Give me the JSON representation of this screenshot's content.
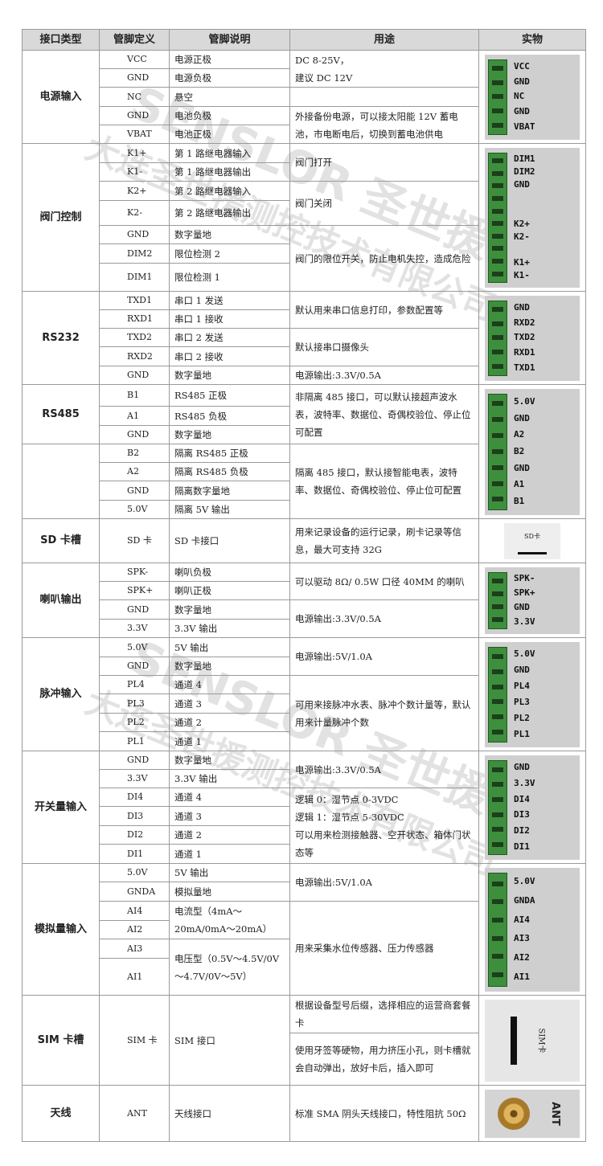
{
  "header": {
    "type": "接口类型",
    "pin": "管脚定义",
    "desc": "管脚说明",
    "use": "用途",
    "photo": "实物"
  },
  "groups": [
    {
      "type": "电源输入",
      "pins": [
        {
          "pin": "VCC",
          "desc": "电源正极"
        },
        {
          "pin": "GND",
          "desc": "电源负极"
        },
        {
          "pin": "NC",
          "desc": "悬空"
        },
        {
          "pin": "GND",
          "desc": "电池负极"
        },
        {
          "pin": "VBAT",
          "desc": "电池正极"
        }
      ],
      "uses": [
        "DC 8-25V，\n建议 DC 12V",
        "",
        "外接备份电源，可以接太阳能 12V 蓄电池，市电断电后，切换到蓄电池供电"
      ],
      "photo": {
        "kind": "connector",
        "labels": [
          "VCC",
          "GND",
          "NC",
          "GND",
          "VBAT"
        ]
      }
    },
    {
      "type": "阀门控制",
      "pins": [
        {
          "pin": "K1+",
          "desc": "第 1 路继电器输入"
        },
        {
          "pin": "K1-",
          "desc": "第 1 路继电器输出"
        },
        {
          "pin": "K2+",
          "desc": "第 2 路继电器输入"
        },
        {
          "pin": "K2-",
          "desc": "第 2 路继电器输出"
        },
        {
          "pin": "GND",
          "desc": "数字量地"
        },
        {
          "pin": "DIM2",
          "desc": "限位检测 2"
        },
        {
          "pin": "DIM1",
          "desc": "限位检测 1"
        }
      ],
      "uses": [
        "阀门打开",
        "阀门关闭",
        "阀门的限位开关，防止电机失控，造成危险"
      ],
      "photo": {
        "kind": "connector",
        "labels": [
          "DIM1",
          "DIM2",
          "GND",
          "",
          "",
          "K2+",
          "K2-",
          "",
          "K1+",
          "K1-"
        ]
      }
    },
    {
      "type": "RS232",
      "pins": [
        {
          "pin": "TXD1",
          "desc": "串口 1 发送"
        },
        {
          "pin": "RXD1",
          "desc": "串口 1 接收"
        },
        {
          "pin": "TXD2",
          "desc": "串口 2 发送"
        },
        {
          "pin": "RXD2",
          "desc": "串口 2 接收"
        },
        {
          "pin": "GND",
          "desc": "数字量地"
        }
      ],
      "uses": [
        "默认用来串口信息打印，参数配置等",
        "默认接串口摄像头",
        "电源输出:3.3V/0.5A"
      ],
      "photo": {
        "kind": "connector",
        "labels": [
          "GND",
          "RXD2",
          "TXD2",
          "RXD1",
          "TXD1"
        ]
      }
    },
    {
      "type": "RS485",
      "pins": [
        {
          "pin": "B1",
          "desc": "RS485 正极"
        },
        {
          "pin": "A1",
          "desc": "RS485 负极"
        },
        {
          "pin": "GND",
          "desc": "数字量地"
        }
      ],
      "uses": [
        "非隔离 485 接口，可以默认接超声波水表，波特率、数据位、奇偶校验位、停止位可配置"
      ],
      "photo": {
        "kind": "connector",
        "labels": [
          "5.0V",
          "GND",
          "A2",
          "B2",
          "GND",
          "A1",
          "B1"
        ]
      }
    },
    {
      "type": "",
      "pins": [
        {
          "pin": "B2",
          "desc": "隔离 RS485 正极"
        },
        {
          "pin": "A2",
          "desc": "隔离 RS485 负极"
        },
        {
          "pin": "GND",
          "desc": "隔离数字量地"
        },
        {
          "pin": "5.0V",
          "desc": "隔离 5V 输出"
        }
      ],
      "uses": [
        "隔离 485 接口，默认接智能电表，波特率、数据位、奇偶校验位、停止位可配置"
      ],
      "photo": null
    },
    {
      "type": "SD 卡槽",
      "pins": [
        {
          "pin": "SD 卡",
          "desc": "SD 卡接口"
        }
      ],
      "uses": [
        "用来记录设备的运行记录，刷卡记录等信息，最大可支持 32G"
      ],
      "photo": {
        "kind": "sd",
        "labels": [
          "SD卡"
        ]
      }
    },
    {
      "type": "喇叭输出",
      "pins": [
        {
          "pin": "SPK-",
          "desc": "喇叭负极"
        },
        {
          "pin": "SPK+",
          "desc": "喇叭正极"
        },
        {
          "pin": "GND",
          "desc": "数字量地"
        },
        {
          "pin": "3.3V",
          "desc": "3.3V 输出"
        }
      ],
      "uses": [
        "可以驱动 8Ω/ 0.5W  口径 40MM 的喇叭",
        "电源输出:3.3V/0.5A"
      ],
      "photo": {
        "kind": "connector",
        "labels": [
          "SPK-",
          "SPK+",
          "GND",
          "3.3V"
        ]
      }
    },
    {
      "type": "脉冲输入",
      "pins": [
        {
          "pin": "5.0V",
          "desc": "5V 输出"
        },
        {
          "pin": "GND",
          "desc": "数字量地"
        },
        {
          "pin": "PL4",
          "desc": "通道 4"
        },
        {
          "pin": "PL3",
          "desc": "通道 3"
        },
        {
          "pin": "PL2",
          "desc": "通道 2"
        },
        {
          "pin": "PL1",
          "desc": "通道 1"
        }
      ],
      "uses": [
        "电源输出:5V/1.0A",
        "可用来接脉冲水表、脉冲个数计量等，默认用来计量脉冲个数"
      ],
      "photo": {
        "kind": "connector",
        "labels": [
          "5.0V",
          "GND",
          "PL4",
          "PL3",
          "PL2",
          "PL1"
        ]
      }
    },
    {
      "type": "开关量输入",
      "pins": [
        {
          "pin": "GND",
          "desc": "数字量地"
        },
        {
          "pin": "3.3V",
          "desc": "3.3V 输出"
        },
        {
          "pin": "DI4",
          "desc": "通道 4"
        },
        {
          "pin": "DI3",
          "desc": "通道 3"
        },
        {
          "pin": "DI2",
          "desc": "通道 2"
        },
        {
          "pin": "DI1",
          "desc": "通道 1"
        }
      ],
      "uses": [
        "电源输出:3.3V/0.5A",
        "逻辑 0：湿节点 0-3VDC\n逻辑 1：湿节点 5-30VDC\n可以用来检测接触器、空开状态、箱体门状态等"
      ],
      "photo": {
        "kind": "connector",
        "labels": [
          "GND",
          "3.3V",
          "DI4",
          "DI3",
          "DI2",
          "DI1"
        ]
      }
    },
    {
      "type": "模拟量输入",
      "pins": [
        {
          "pin": "5.0V",
          "desc": "5V 输出"
        },
        {
          "pin": "GNDA",
          "desc": "模拟量地"
        },
        {
          "pin": "AI4",
          "desc": "电流型（4mA～20mA/0mA～20mA）"
        },
        {
          "pin": "AI2",
          "desc": ""
        },
        {
          "pin": "AI3",
          "desc": "电压型（0.5V～4.5V/0V～4.7V/0V～5V）"
        },
        {
          "pin": "AI1",
          "desc": ""
        }
      ],
      "uses": [
        "电源输出:5V/1.0A",
        "用来采集水位传感器、压力传感器"
      ],
      "photo": {
        "kind": "connector",
        "labels": [
          "5.0V",
          "GNDA",
          "AI4",
          "AI3",
          "AI2",
          "AI1"
        ]
      }
    },
    {
      "type": "SIM 卡槽",
      "pins": [
        {
          "pin": "SIM 卡",
          "desc": "SIM 接口"
        }
      ],
      "uses": [
        "根据设备型号后缀，选择相应的运营商套餐卡",
        "使用牙签等硬物，用力挤压小孔，则卡槽就会自动弹出，放好卡后，插入即可"
      ],
      "photo": {
        "kind": "sim",
        "labels": [
          "SIM卡"
        ]
      }
    },
    {
      "type": "天线",
      "pins": [
        {
          "pin": "ANT",
          "desc": "天线接口"
        }
      ],
      "uses": [
        "标准 SMA 阴头天线接口，特性阻抗 50Ω"
      ],
      "photo": {
        "kind": "ant",
        "labels": [
          "ANT"
        ]
      }
    }
  ],
  "watermark": {
    "brand": "SENSLOR 圣世援",
    "company": "大连圣世援测控技术有限公司"
  },
  "colors": {
    "header_bg": "#d9d9d9",
    "connector_green": "#3d8f3d",
    "border": "#9a9a9a"
  }
}
